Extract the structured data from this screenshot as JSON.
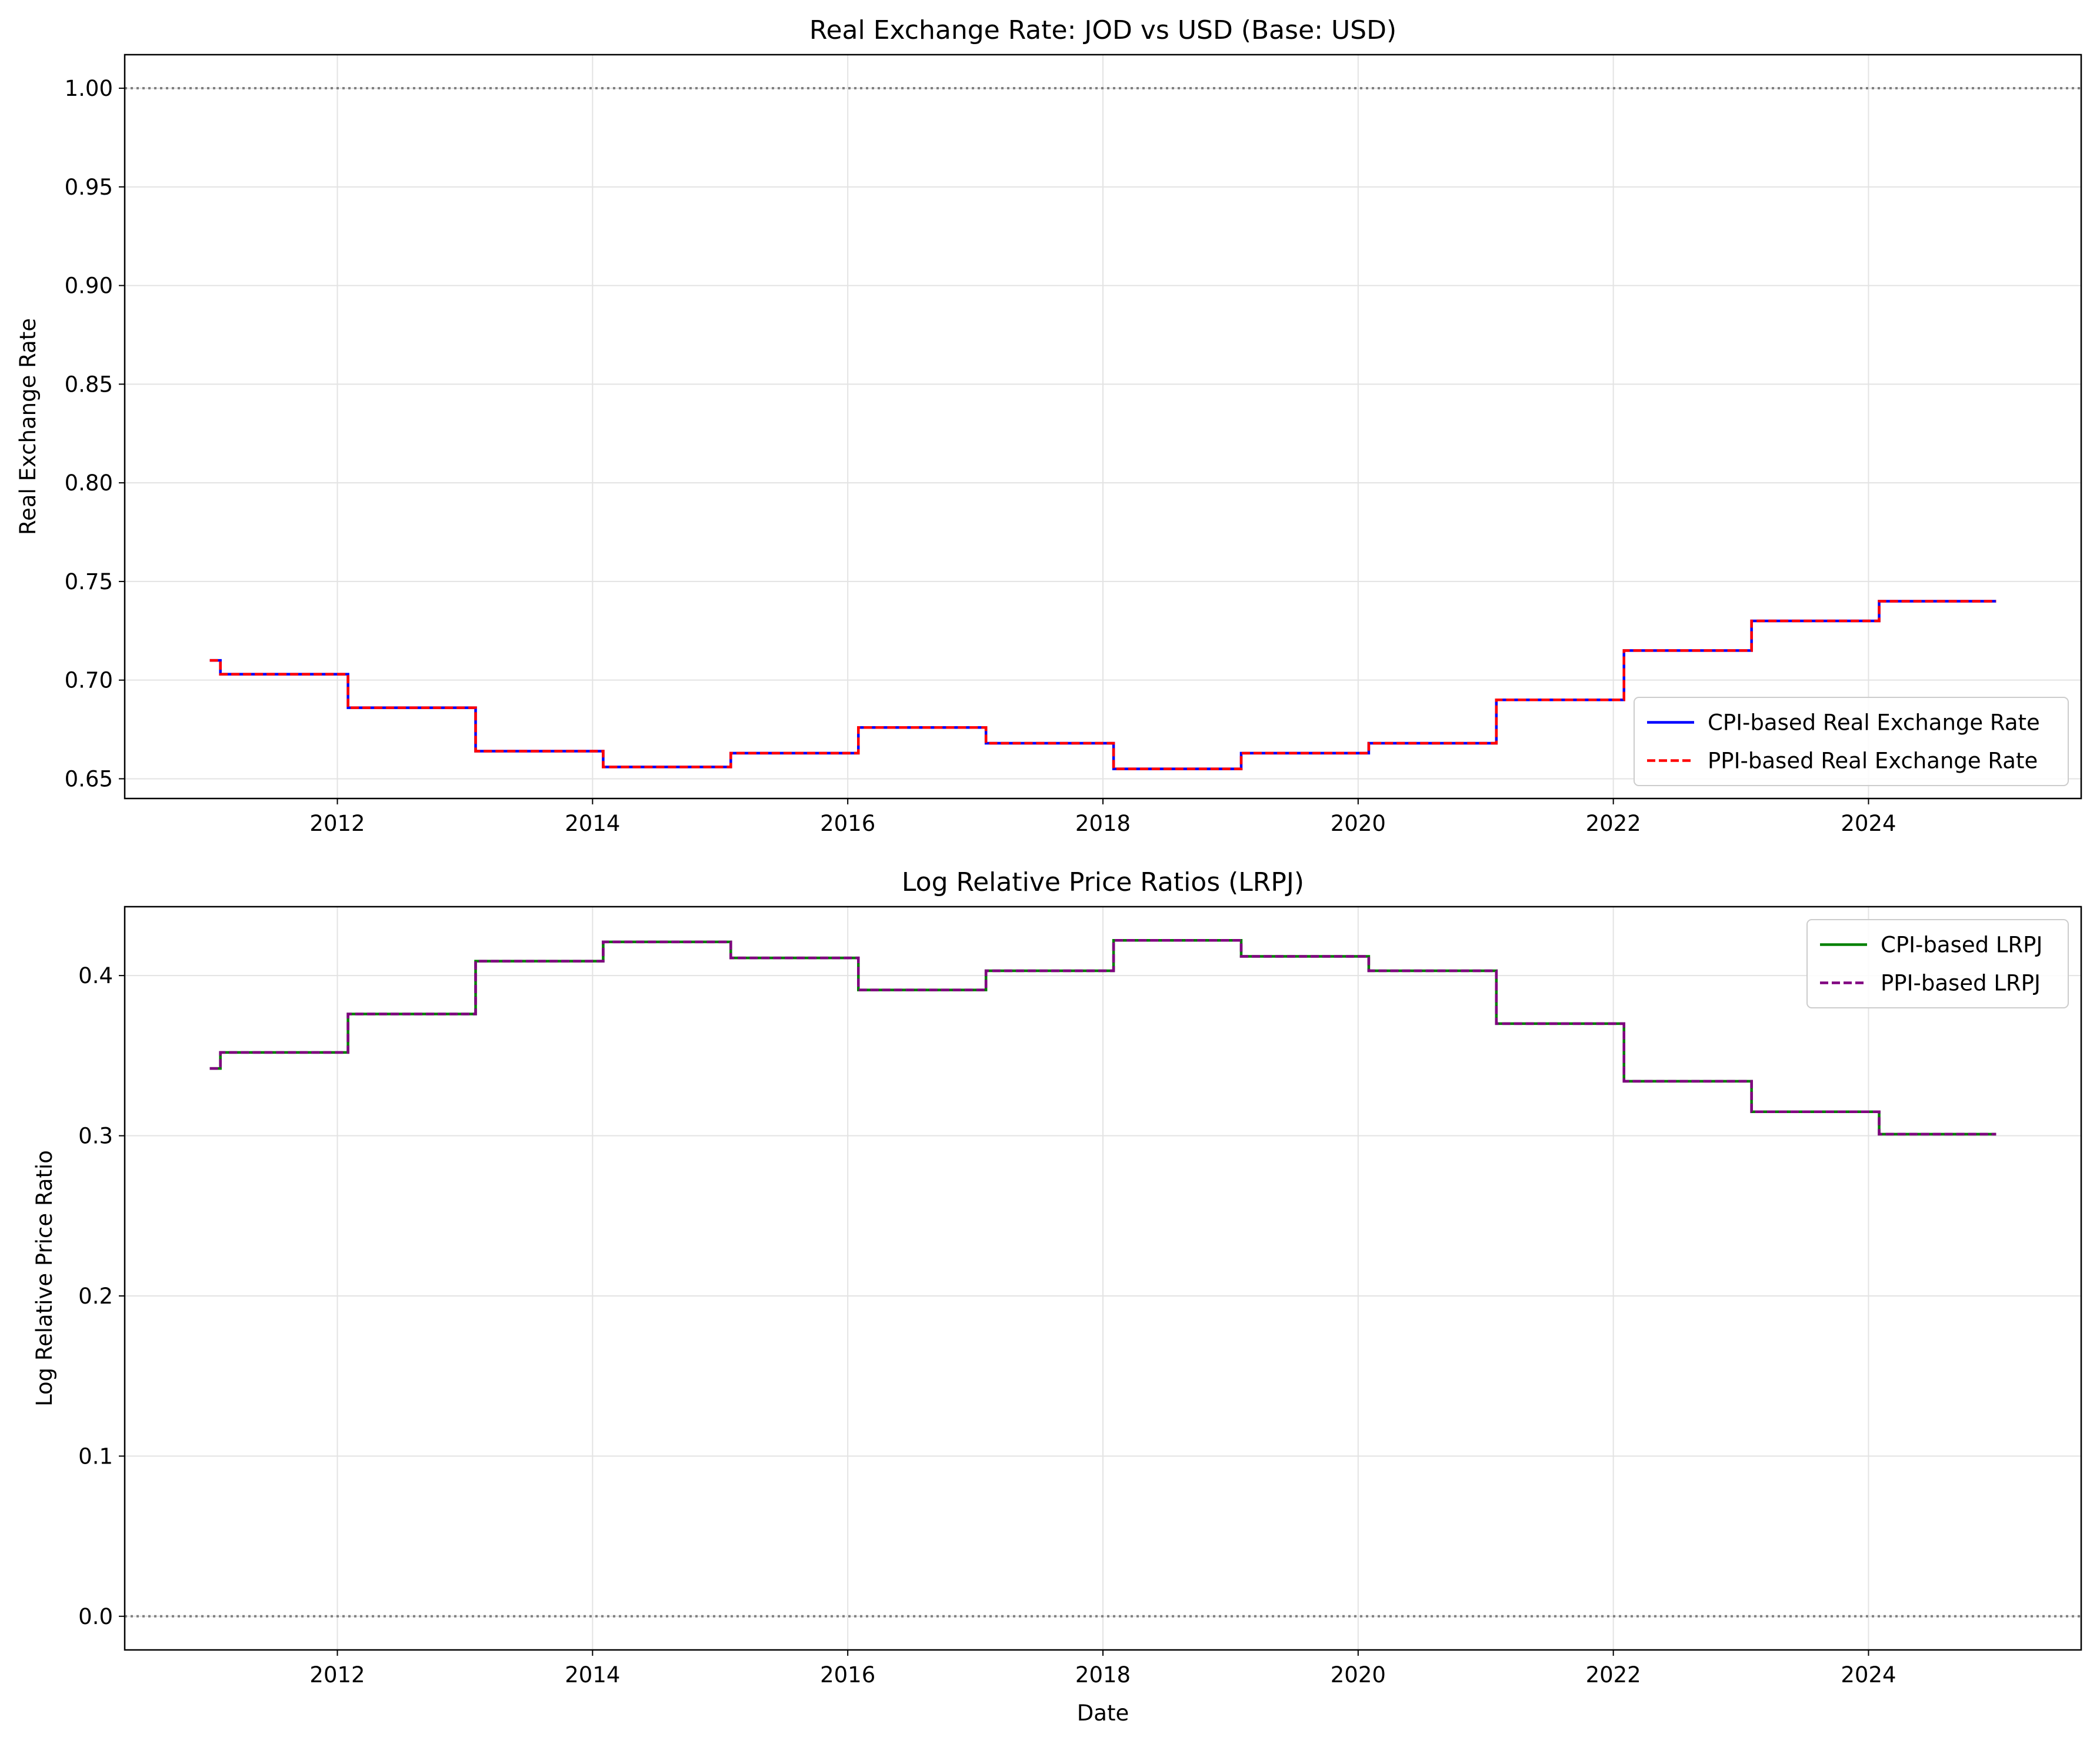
{
  "chart_data": [
    {
      "type": "line",
      "step": "post",
      "title": "Real Exchange Rate: JOD vs USD (Base: USD)",
      "xlabel": "",
      "ylabel": "Real Exchange Rate",
      "xlim": [
        "2010-05",
        "2025-09"
      ],
      "ylim": [
        0.64,
        1.017
      ],
      "x_ticks": [
        "2012",
        "2014",
        "2016",
        "2018",
        "2020",
        "2022",
        "2024"
      ],
      "y_ticks": [
        "0.65",
        "0.70",
        "0.75",
        "0.80",
        "0.85",
        "0.90",
        "0.95",
        "1.00"
      ],
      "grid": true,
      "legend_position": "lower right",
      "reference_line": {
        "y": 1.0,
        "style": "dotted",
        "color": "#808080"
      },
      "x": [
        "2011-01-01",
        "2011-02-01",
        "2012-02-01",
        "2013-02-01",
        "2014-02-01",
        "2015-02-01",
        "2016-02-01",
        "2017-02-01",
        "2018-02-01",
        "2019-02-01",
        "2020-02-01",
        "2021-02-01",
        "2022-02-01",
        "2023-02-01",
        "2024-02-01",
        "2025-01-01"
      ],
      "series": [
        {
          "name": "CPI-based Real Exchange Rate",
          "color": "#0000ff",
          "style": "solid",
          "values": [
            0.71,
            0.703,
            0.686,
            0.664,
            0.656,
            0.663,
            0.676,
            0.668,
            0.655,
            0.663,
            0.668,
            0.69,
            0.715,
            0.73,
            0.74,
            0.74
          ]
        },
        {
          "name": "PPI-based Real Exchange Rate",
          "color": "#ff0000",
          "style": "dashed",
          "values": [
            0.71,
            0.703,
            0.686,
            0.664,
            0.656,
            0.663,
            0.676,
            0.668,
            0.655,
            0.663,
            0.668,
            0.69,
            0.715,
            0.73,
            0.74,
            0.74
          ]
        }
      ]
    },
    {
      "type": "line",
      "step": "post",
      "title": "Log Relative Price Ratios (LRPJ)",
      "xlabel": "Date",
      "ylabel": "Log Relative Price Ratio",
      "xlim": [
        "2010-05",
        "2025-09"
      ],
      "ylim": [
        -0.021,
        0.443
      ],
      "x_ticks": [
        "2012",
        "2014",
        "2016",
        "2018",
        "2020",
        "2022",
        "2024"
      ],
      "y_ticks": [
        "0.0",
        "0.1",
        "0.2",
        "0.3",
        "0.4"
      ],
      "grid": true,
      "legend_position": "upper right",
      "reference_line": {
        "y": 0.0,
        "style": "dotted",
        "color": "#808080"
      },
      "x": [
        "2011-01-01",
        "2011-02-01",
        "2012-02-01",
        "2013-02-01",
        "2014-02-01",
        "2015-02-01",
        "2016-02-01",
        "2017-02-01",
        "2018-02-01",
        "2019-02-01",
        "2020-02-01",
        "2021-02-01",
        "2022-02-01",
        "2023-02-01",
        "2024-02-01",
        "2025-01-01"
      ],
      "series": [
        {
          "name": "CPI-based LRPJ",
          "color": "#008000",
          "style": "solid",
          "values": [
            0.342,
            0.352,
            0.376,
            0.409,
            0.421,
            0.411,
            0.391,
            0.403,
            0.422,
            0.412,
            0.403,
            0.37,
            0.334,
            0.315,
            0.301,
            0.301
          ]
        },
        {
          "name": "PPI-based LRPJ",
          "color": "#800080",
          "style": "dashed",
          "values": [
            0.342,
            0.352,
            0.376,
            0.409,
            0.421,
            0.411,
            0.391,
            0.403,
            0.422,
            0.412,
            0.403,
            0.37,
            0.334,
            0.315,
            0.301,
            0.301
          ]
        }
      ]
    }
  ]
}
